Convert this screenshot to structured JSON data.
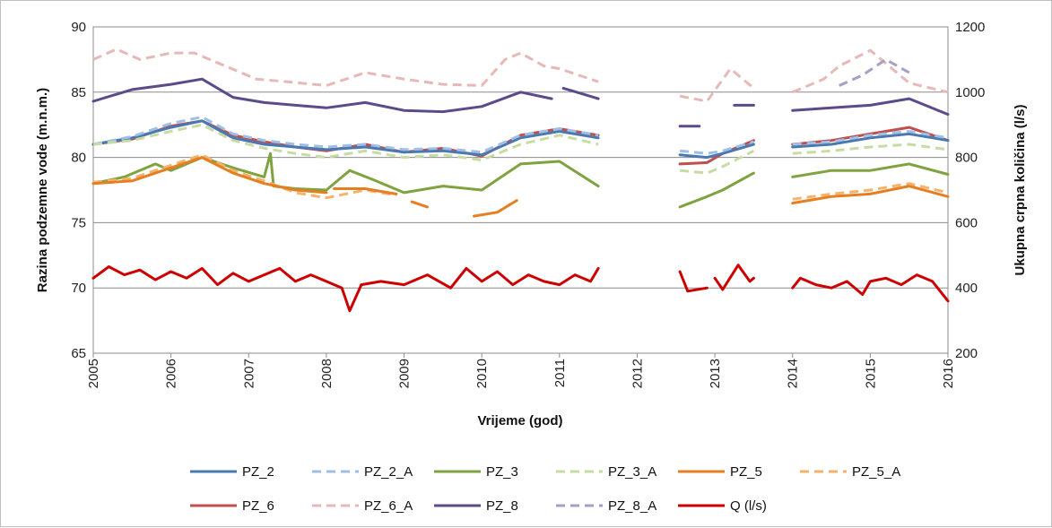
{
  "chart_data": {
    "type": "line",
    "xlabel": "Vrijeme (god)",
    "ylabel_left": "Razina podzemne vode (m.n.m.)",
    "ylabel_right": "Ukupna crpna količina (l/s)",
    "xlim": [
      2005,
      2016
    ],
    "ylim_left": [
      65,
      90
    ],
    "ylim_right": [
      200,
      1200
    ],
    "xticks": [
      "2005",
      "2006",
      "2007",
      "2008",
      "2009",
      "2010",
      "2011",
      "2012",
      "2013",
      "2014",
      "2015",
      "2016"
    ],
    "yticks_left": [
      "65",
      "70",
      "75",
      "80",
      "85",
      "90"
    ],
    "yticks_right": [
      "200",
      "400",
      "600",
      "800",
      "1000",
      "1200"
    ],
    "grid": "horizontal",
    "legend_position": "bottom",
    "series": [
      {
        "name": "PZ_2",
        "color": "#4a78b0",
        "dash": "solid",
        "axis": "left",
        "x": [
          2005,
          2005.5,
          2006,
          2006.4,
          2006.8,
          2007.2,
          2007.6,
          2008,
          2008.5,
          2009,
          2009.5,
          2010,
          2010.5,
          2011,
          2011.5,
          null,
          2012.55,
          2012.9,
          2013.1,
          2013.5,
          null,
          2014,
          2014.5,
          2015,
          2015.5,
          2016
        ],
        "y": [
          81,
          81.5,
          82.3,
          82.8,
          81.5,
          81,
          80.8,
          80.6,
          80.8,
          80.4,
          80.5,
          80.2,
          81.5,
          82,
          81.5,
          null,
          80.2,
          80,
          80.3,
          81,
          null,
          80.8,
          81,
          81.5,
          81.8,
          81.3
        ]
      },
      {
        "name": "PZ_2_A",
        "color": "#9fbfe6",
        "dash": "dashed",
        "axis": "left",
        "x": [
          2005,
          2005.5,
          2006,
          2006.4,
          2006.8,
          2007.2,
          2007.6,
          2008,
          2008.5,
          2009,
          2009.5,
          2010,
          2010.5,
          2011,
          2011.5,
          null,
          2012.55,
          2012.9,
          2013.1,
          2013.5,
          null,
          2014,
          2014.5,
          2015,
          2015.5,
          2016
        ],
        "y": [
          81,
          81.6,
          82.6,
          83.1,
          81.8,
          81.3,
          81,
          80.8,
          81,
          80.6,
          80.7,
          80.4,
          81.7,
          82.2,
          81.7,
          null,
          80.5,
          80.3,
          80.5,
          81.2,
          null,
          81,
          81.2,
          81.7,
          82,
          81.5
        ]
      },
      {
        "name": "PZ_3",
        "color": "#7ea33f",
        "dash": "solid",
        "axis": "left",
        "x": [
          2005,
          2005.4,
          2005.8,
          2006,
          2006.4,
          2006.8,
          2007.2,
          2007.28,
          2007.32,
          2007.6,
          2008,
          2008.3,
          2008.6,
          2009,
          2009.5,
          2010,
          2010.5,
          2011,
          2011.5,
          null,
          2012.55,
          2012.9,
          2013.1,
          2013.5,
          null,
          2014,
          2014.5,
          2015,
          2015.5,
          2016
        ],
        "y": [
          78,
          78.5,
          79.5,
          79,
          80,
          79.2,
          78.5,
          80.3,
          77.8,
          77.6,
          77.5,
          79,
          78.3,
          77.3,
          77.8,
          77.5,
          79.5,
          79.7,
          77.8,
          null,
          76.2,
          77,
          77.5,
          78.8,
          null,
          78.5,
          79,
          79,
          79.5,
          78.7
        ]
      },
      {
        "name": "PZ_3_A",
        "color": "#c6dca3",
        "dash": "dashed",
        "axis": "left",
        "x": [
          2005,
          2005.5,
          2006,
          2006.4,
          2006.8,
          2007.2,
          2007.6,
          2008,
          2008.5,
          2009,
          2009.5,
          2010,
          2010.5,
          2011,
          2011.5,
          null,
          2012.55,
          2012.9,
          2013.1,
          2013.5,
          null,
          2014,
          2014.5,
          2015,
          2015.5,
          2016
        ],
        "y": [
          81,
          81.3,
          82,
          82.5,
          81.3,
          80.7,
          80.3,
          80,
          80.5,
          80,
          80.2,
          79.8,
          81,
          81.7,
          81,
          null,
          79,
          78.8,
          79.3,
          80.5,
          null,
          80.3,
          80.5,
          80.8,
          81,
          80.6
        ]
      },
      {
        "name": "PZ_5",
        "color": "#e67e22",
        "dash": "solid",
        "axis": "left",
        "x": [
          2005,
          2005.5,
          2006,
          2006.4,
          2006.8,
          2007.2,
          2007.6,
          2008,
          null,
          2008.1,
          2008.5,
          2008.9,
          null,
          2009.1,
          2009.3,
          null,
          2009.9,
          2010.2,
          2010.45,
          null,
          2014,
          2014.5,
          2015,
          2015.5,
          2016
        ],
        "y": [
          78,
          78.2,
          79.2,
          80,
          78.8,
          78,
          77.5,
          77.3,
          null,
          77.6,
          77.6,
          77.2,
          null,
          76.6,
          76.2,
          null,
          75.5,
          75.8,
          76.7,
          null,
          76.5,
          77,
          77.2,
          77.8,
          77
        ]
      },
      {
        "name": "PZ_5_A",
        "color": "#f5b26b",
        "dash": "dashed",
        "axis": "left",
        "x": [
          2005,
          2005.5,
          2006,
          2006.4,
          2006.8,
          2007.2,
          2007.6,
          2008,
          2008.5,
          2008.9,
          null,
          2014,
          2014.5,
          2015,
          2015.5,
          2016
        ],
        "y": [
          78.1,
          78.4,
          79.4,
          80.2,
          79,
          78.2,
          77.3,
          76.9,
          77.5,
          77.1,
          null,
          76.8,
          77.2,
          77.5,
          78,
          77.3
        ]
      },
      {
        "name": "PZ_6",
        "color": "#c0504d",
        "dash": "solid",
        "axis": "left",
        "x": [
          2005,
          2005.5,
          2006,
          2006.4,
          2006.8,
          2007.2,
          2007.6,
          2008,
          2008.5,
          2009,
          2009.5,
          2010,
          2010.5,
          2011,
          2011.5,
          null,
          2012.55,
          2012.9,
          2013.1,
          2013.5,
          null,
          2014,
          2014.5,
          2015,
          2015.5,
          2016
        ],
        "y": [
          81,
          81.4,
          82.4,
          82.8,
          81.7,
          81.2,
          80.8,
          80.5,
          81,
          80.4,
          80.7,
          80.1,
          81.7,
          82.2,
          81.7,
          null,
          79.5,
          79.6,
          80.3,
          81.3,
          null,
          81,
          81.3,
          81.8,
          82.3,
          81.3
        ]
      },
      {
        "name": "PZ_6_A",
        "color": "#e6b9b8",
        "dash": "dashed",
        "axis": "left",
        "x": [
          2005,
          2005.3,
          2005.6,
          2006,
          2006.3,
          2006.7,
          2007.1,
          2007.5,
          2008,
          2008.5,
          2009,
          2009.5,
          2010,
          2010.3,
          2010.5,
          2010.8,
          2011,
          2011.5,
          null,
          2012.55,
          2012.9,
          2013.2,
          2013.5,
          null,
          2014,
          2014.4,
          2014.6,
          2015,
          2015.5,
          2016
        ],
        "y": [
          87.5,
          88.3,
          87.5,
          88,
          88,
          87,
          86,
          85.8,
          85.5,
          86.5,
          86,
          85.6,
          85.5,
          87.5,
          88,
          87,
          86.8,
          85.8,
          null,
          84.7,
          84.3,
          86.8,
          85.3,
          null,
          85,
          86,
          87,
          88.2,
          85.7,
          85
        ]
      },
      {
        "name": "PZ_8",
        "color": "#5c4b8b",
        "dash": "solid",
        "axis": "left",
        "x": [
          2005,
          2005.5,
          2006,
          2006.4,
          2006.8,
          2007.2,
          2007.6,
          2008,
          2008.5,
          2009,
          2009.5,
          2010,
          2010.5,
          2010.9,
          null,
          2011.05,
          2011.5,
          null,
          2012.55,
          2012.8,
          null,
          2013.25,
          2013.5,
          null,
          2014,
          2014.5,
          2015,
          2015.5,
          2016
        ],
        "y": [
          84.3,
          85.2,
          85.6,
          86,
          84.6,
          84.2,
          84,
          83.8,
          84.2,
          83.6,
          83.5,
          83.9,
          85,
          84.5,
          null,
          85.3,
          84.5,
          null,
          82.4,
          82.4,
          null,
          84,
          84,
          null,
          83.6,
          83.8,
          84,
          84.5,
          83.3
        ]
      },
      {
        "name": "PZ_8_A",
        "color": "#a5a0c6",
        "dash": "dashed",
        "axis": "left",
        "x": [
          2014.6,
          2014.9,
          2015.2,
          2015.5
        ],
        "y": [
          85.5,
          86.3,
          87.5,
          86.5
        ]
      },
      {
        "name": "Q (l/s)",
        "color": "#cc0000",
        "dash": "solid",
        "axis": "right",
        "x": [
          2005,
          2005.2,
          2005.4,
          2005.6,
          2005.8,
          2006,
          2006.2,
          2006.4,
          2006.6,
          2006.8,
          2007,
          2007.2,
          2007.4,
          2007.6,
          2007.8,
          2008,
          2008.2,
          2008.3,
          2008.45,
          2008.7,
          2009,
          2009.3,
          2009.6,
          2009.8,
          2010,
          2010.2,
          2010.4,
          2010.6,
          2010.8,
          2011,
          2011.2,
          2011.4,
          2011.5,
          null,
          2012.55,
          2012.65,
          2012.9,
          null,
          2013.0,
          2013.1,
          2013.3,
          2013.45,
          2013.5,
          null,
          2014,
          2014.1,
          2014.3,
          2014.5,
          2014.7,
          2014.9,
          2015,
          2015.2,
          2015.4,
          2015.6,
          2015.8,
          2016
        ],
        "y": [
          430,
          465,
          440,
          455,
          425,
          450,
          430,
          460,
          410,
          445,
          420,
          440,
          460,
          420,
          440,
          420,
          400,
          330,
          410,
          420,
          410,
          440,
          400,
          460,
          420,
          450,
          410,
          440,
          420,
          410,
          440,
          420,
          460,
          null,
          450,
          390,
          400,
          null,
          430,
          395,
          470,
          420,
          430,
          null,
          400,
          430,
          410,
          400,
          420,
          380,
          420,
          430,
          410,
          440,
          420,
          360
        ]
      }
    ]
  },
  "chart": {
    "xlabel": "Vrijeme (god)",
    "ylabel_left": "Razina podzemne vode (m.n.m.)",
    "ylabel_right": "Ukupna crpna količina (l/s)"
  }
}
